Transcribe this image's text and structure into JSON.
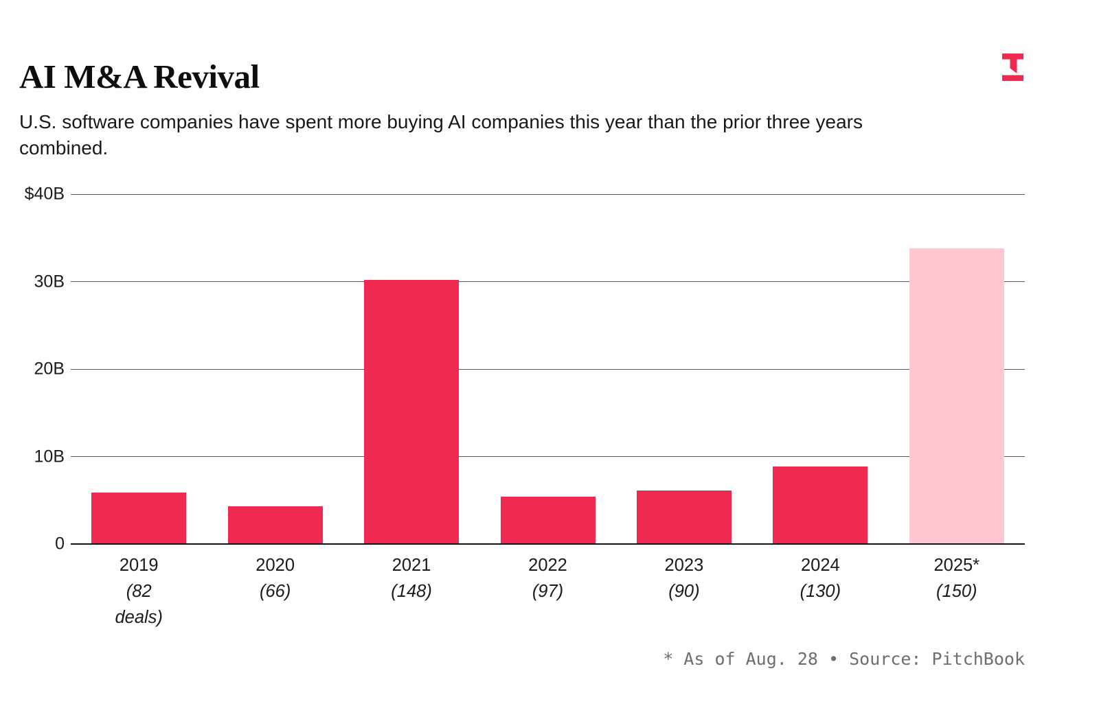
{
  "chart_data": {
    "type": "bar",
    "title": "AI M&A Revival",
    "subtitle": "U.S. software companies have spent more buying AI companies this year than the prior three years combined.",
    "unit": "billions of U.S. dollars",
    "categories": [
      "2019",
      "2020",
      "2021",
      "2022",
      "2023",
      "2024",
      "2025*"
    ],
    "values": [
      5.9,
      4.3,
      30.2,
      5.4,
      6.1,
      8.9,
      33.8
    ],
    "deal_counts": [
      82,
      66,
      148,
      97,
      90,
      130,
      150
    ],
    "deal_labels": [
      "(82 deals)",
      "(66)",
      "(148)",
      "(97)",
      "(90)",
      "(130)",
      "(150)"
    ],
    "yticks": [
      {
        "label": "$40B",
        "value": 40
      },
      {
        "label": "30B",
        "value": 30
      },
      {
        "label": "20B",
        "value": 20
      },
      {
        "label": "10B",
        "value": 10
      },
      {
        "label": "0",
        "value": 0
      }
    ],
    "ylim": [
      0,
      40
    ],
    "grid": true,
    "legend": "none",
    "bar_color": "#EE2A50",
    "highlight_color": "#FFC7D0",
    "highlight_index": 6,
    "footnote": "* As of Aug. 28 • Source: PitchBook"
  },
  "logo": {
    "name": "the-information-logo",
    "color": "#EE2A50"
  }
}
